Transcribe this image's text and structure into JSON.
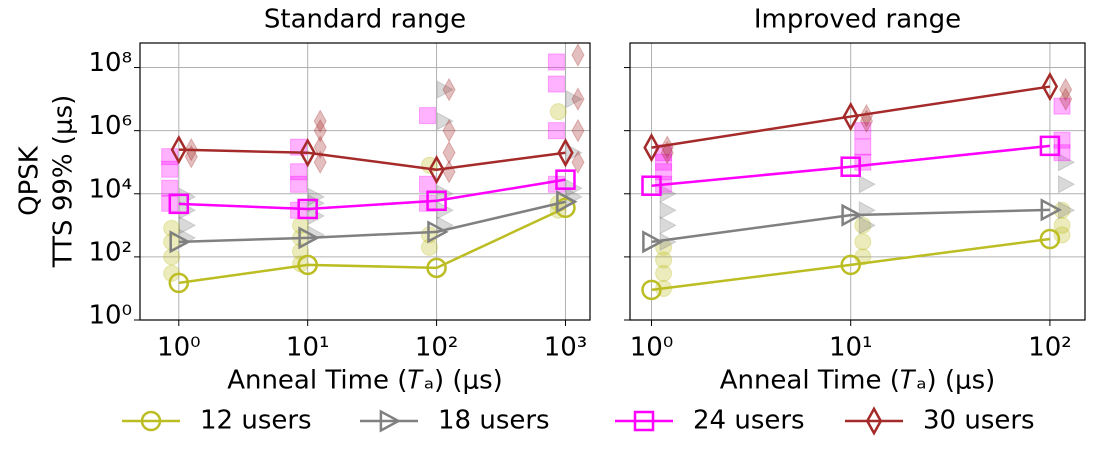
{
  "chart_data": [
    {
      "type": "line",
      "title": "Standard range",
      "x_label": "Anneal Time (𝑇ₐ) (μs)",
      "y_label": [
        "QPSK",
        "TTS 99% (μs)"
      ],
      "xscale": "log",
      "yscale": "log",
      "grid": true,
      "xlim": [
        0.5,
        1550
      ],
      "ylim": [
        1,
        600000000
      ],
      "xticks": [
        {
          "value": 1,
          "label": "10⁰"
        },
        {
          "value": 10,
          "label": "10¹"
        },
        {
          "value": 100,
          "label": "10²"
        },
        {
          "value": 1000,
          "label": "10³"
        }
      ],
      "yticks": [
        {
          "value": 1,
          "label": "10⁰"
        },
        {
          "value": 100,
          "label": "10²"
        },
        {
          "value": 10000,
          "label": "10⁴"
        },
        {
          "value": 1000000,
          "label": "10⁶"
        },
        {
          "value": 100000000,
          "label": "10⁸"
        }
      ],
      "x": [
        1,
        10,
        100,
        1000
      ],
      "series": [
        {
          "name": "12 users",
          "color": "#bcbd22",
          "marker": "o",
          "values": [
            15,
            56,
            45,
            3600
          ],
          "cloud_x": [
            0.88,
            0.88,
            0.88,
            0.88,
            8.8,
            8.8,
            8.8,
            8.8,
            88,
            88,
            88,
            880,
            880,
            880
          ],
          "cloud_values": [
            30,
            100,
            300,
            800,
            60,
            150,
            400,
            1000,
            200,
            500,
            80000,
            3000,
            5000,
            4000000
          ]
        },
        {
          "name": "18 users",
          "color": "#808080",
          "marker": ">",
          "values": [
            300,
            400,
            620,
            5600
          ],
          "cloud_x": [
            1.15,
            1.15,
            1.15,
            1.15,
            11.5,
            11.5,
            11.5,
            11.5,
            115,
            115,
            115,
            115,
            115,
            1150,
            1150,
            1150,
            1150
          ],
          "cloud_values": [
            400,
            1000,
            3000,
            8000,
            500,
            2000,
            5000,
            8000,
            1000,
            3000,
            10000,
            2000000,
            20000000,
            8000,
            15000,
            200000,
            10000000
          ]
        },
        {
          "name": "24 users",
          "color": "#ff00ff",
          "marker": "s",
          "values": [
            4800,
            3300,
            6000,
            28000
          ],
          "cloud_x": [
            0.85,
            0.85,
            0.85,
            0.85,
            8.5,
            8.5,
            8.5,
            8.5,
            85,
            85,
            85,
            850,
            850,
            850,
            850
          ],
          "cloud_values": [
            5000,
            15000,
            60000,
            150000,
            3000,
            20000,
            50000,
            300000,
            5000,
            20000,
            3000000,
            20000,
            1000000,
            30000000,
            150000000
          ]
        },
        {
          "name": "30 users",
          "color": "#a52a2a",
          "marker": "d",
          "values": [
            250000,
            200000,
            58000,
            200000
          ],
          "cloud_x": [
            1.25,
            1.25,
            12.5,
            12.5,
            12.5,
            12.5,
            125,
            125,
            125,
            125,
            1250,
            1250,
            1250,
            1250
          ],
          "cloud_values": [
            150000,
            250000,
            100000,
            300000,
            1000000,
            2000000,
            50000,
            200000,
            1000000,
            20000000,
            100000,
            1000000,
            10000000,
            250000000
          ]
        }
      ]
    },
    {
      "type": "line",
      "title": "Improved range",
      "x_label": "Anneal Time (𝑇ₐ) (μs)",
      "xscale": "log",
      "yscale": "log",
      "grid": true,
      "xlim": [
        0.78,
        150
      ],
      "ylim": [
        1,
        600000000
      ],
      "xticks": [
        {
          "value": 1,
          "label": "10⁰"
        },
        {
          "value": 10,
          "label": "10¹"
        },
        {
          "value": 100,
          "label": "10²"
        }
      ],
      "yticks": [
        1,
        100,
        10000,
        1000000,
        100000000
      ],
      "x": [
        1,
        10,
        100
      ],
      "series": [
        {
          "name": "12 users",
          "color": "#bcbd22",
          "marker": "o",
          "values": [
            9,
            56,
            370
          ],
          "cloud_x": [
            1.15,
            1.15,
            1.15,
            1.15,
            11.5,
            11.5,
            11.5,
            115,
            115,
            115
          ],
          "cloud_values": [
            10,
            30,
            80,
            200,
            100,
            300,
            1000,
            500,
            1000,
            3000
          ]
        },
        {
          "name": "18 users",
          "color": "#808080",
          "marker": ">",
          "values": [
            300,
            2100,
            3100
          ],
          "cloud_x": [
            1.2,
            1.2,
            1.2,
            1.2,
            12,
            12,
            12,
            120,
            120,
            120
          ],
          "cloud_values": [
            300,
            1000,
            3000,
            10000,
            1000,
            3000,
            20000,
            3000,
            20000,
            100000
          ]
        },
        {
          "name": "24 users",
          "color": "#ff00ff",
          "marker": "s",
          "values": [
            18000,
            72000,
            330000
          ],
          "cloud_x": [
            1.15,
            1.15,
            1.15,
            1.15,
            11.5,
            11.5,
            11.5,
            115,
            115,
            115
          ],
          "cloud_values": [
            20000,
            50000,
            100000,
            200000,
            100000,
            300000,
            1000000,
            200000,
            500000,
            6000000
          ]
        },
        {
          "name": "30 users",
          "color": "#a52a2a",
          "marker": "d",
          "values": [
            290000,
            2800000,
            25000000
          ],
          "cloud_x": [
            1.2,
            1.2,
            12,
            12,
            120,
            120
          ],
          "cloud_values": [
            200000,
            300000,
            2000000,
            3000000,
            10000000,
            20000000
          ]
        }
      ]
    }
  ]
}
